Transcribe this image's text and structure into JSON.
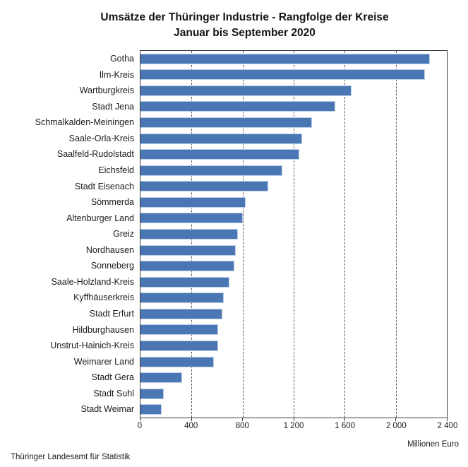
{
  "title": {
    "line1": "Umsätze der Thüringer Industrie - Rangfolge der Kreise",
    "line2": "Januar bis September 2020"
  },
  "axis": {
    "unit_label": "Millionen Euro"
  },
  "footer": {
    "source": "Thüringer Landesamt für Statistik"
  },
  "colors": {
    "bar_fill": "#4a77b4",
    "bar_border": "#bccfe6",
    "gridline": "#5a5a5a",
    "axis_border": "#3a3a3a",
    "text": "#1a1a1a"
  },
  "chart_data": {
    "type": "bar",
    "orientation": "horizontal",
    "title": "Umsätze der Thüringer Industrie - Rangfolge der Kreise",
    "subtitle": "Januar bis September 2020",
    "xlabel": "Millionen Euro",
    "xlim": [
      0,
      2400
    ],
    "x_ticks": [
      0,
      400,
      800,
      1200,
      1600,
      2000,
      2400
    ],
    "x_tick_labels": [
      "0",
      "400",
      "800",
      "1 200",
      "1 600",
      "2 000",
      "2 400"
    ],
    "grid": "vertical-dashed",
    "legend": "none",
    "categories": [
      "Gotha",
      "Ilm-Kreis",
      "Wartburgkreis",
      "Stadt Jena",
      "Schmalkalden-Meiningen",
      "Saale-Orla-Kreis",
      "Saalfeld-Rudolstadt",
      "Eichsfeld",
      "Stadt Eisenach",
      "Sömmerda",
      "Altenburger Land",
      "Greiz",
      "Nordhausen",
      "Sonneberg",
      "Saale-Holzland-Kreis",
      "Kyffhäuserkreis",
      "Stadt Erfurt",
      "Hildburghausen",
      "Unstrut-Hainich-Kreis",
      "Weimarer Land",
      "Stadt Gera",
      "Stadt Suhl",
      "Stadt Weimar"
    ],
    "values": [
      2260,
      2225,
      1650,
      1520,
      1340,
      1260,
      1240,
      1105,
      995,
      820,
      795,
      755,
      740,
      730,
      690,
      645,
      635,
      605,
      600,
      570,
      320,
      175,
      160
    ],
    "source": "Thüringer Landesamt für Statistik"
  }
}
